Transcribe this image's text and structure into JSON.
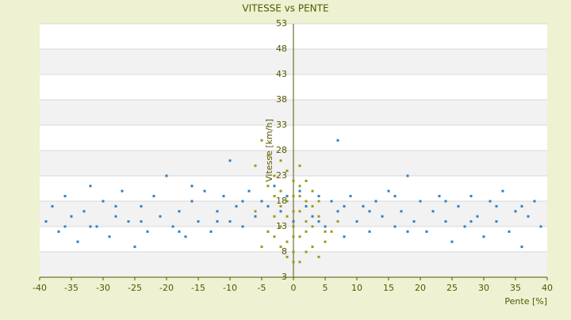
{
  "chart_data": {
    "type": "scatter",
    "title": "VITESSE vs PENTE",
    "xlabel": "Pente [%]",
    "ylabel": "Vitesse [km/h]",
    "xlim": [
      -40,
      40
    ],
    "xticks": [
      -40,
      -35,
      -30,
      -25,
      -20,
      -15,
      -10,
      -5,
      0,
      5,
      10,
      15,
      20,
      25,
      30,
      35,
      40
    ],
    "ylim": [
      3,
      53
    ],
    "yticks": [
      3,
      8,
      13,
      18,
      23,
      28,
      33,
      38,
      43,
      48,
      53
    ],
    "grid": true,
    "series": [
      {
        "color": "#2e7fc4",
        "x": [
          -39,
          -38,
          -37,
          -36,
          -35,
          -34,
          -33,
          -32,
          -31,
          -30,
          -29,
          -28,
          -27,
          -26,
          -25,
          -24,
          -23,
          -22,
          -21,
          -20,
          -19,
          -18,
          -17,
          -16,
          -15,
          -14,
          -13,
          -12,
          -11,
          -10,
          -9,
          -8,
          -7,
          -6,
          -5,
          -4,
          -3,
          -2,
          -1,
          0,
          1,
          2,
          3,
          4,
          5,
          6,
          7,
          8,
          9,
          10,
          11,
          12,
          13,
          14,
          15,
          16,
          17,
          18,
          19,
          20,
          21,
          22,
          23,
          24,
          25,
          26,
          27,
          28,
          29,
          30,
          31,
          32,
          33,
          34,
          35,
          36,
          37,
          38,
          39,
          -36,
          -28,
          -18,
          -8,
          8,
          18,
          28,
          36,
          -12,
          12,
          -4,
          4,
          -24,
          24,
          -32,
          32,
          7,
          -10,
          -16,
          16
        ],
        "values": [
          14,
          17,
          12,
          19,
          15,
          10,
          16,
          21,
          13,
          18,
          11,
          15,
          20,
          14,
          9,
          17,
          12,
          19,
          15,
          23,
          13,
          16,
          11,
          18,
          14,
          20,
          12,
          16,
          19,
          14,
          17,
          13,
          20,
          15,
          18,
          12,
          21,
          16,
          19,
          14,
          20,
          17,
          15,
          19,
          13,
          18,
          16,
          11,
          19,
          14,
          17,
          12,
          18,
          15,
          20,
          13,
          16,
          23,
          14,
          18,
          12,
          16,
          19,
          14,
          10,
          17,
          13,
          19,
          15,
          11,
          18,
          14,
          20,
          12,
          16,
          9,
          15,
          18,
          13,
          13,
          17,
          12,
          18,
          17,
          12,
          14,
          17,
          14,
          16,
          17,
          14,
          14,
          18,
          13,
          17,
          30,
          26,
          21,
          19
        ]
      },
      {
        "color": "#9c9a14",
        "x": [
          -5,
          -4,
          -3,
          -2,
          -1,
          0,
          1,
          2,
          3,
          4,
          5,
          -5,
          -4,
          -3,
          -2,
          -1,
          0,
          1,
          2,
          3,
          4,
          5,
          -1,
          0,
          1,
          2,
          -2,
          -3,
          3,
          0,
          0,
          -1,
          1,
          2,
          -2,
          6,
          7,
          -6,
          -6,
          0,
          1,
          -1,
          2,
          -3,
          3,
          0,
          -4,
          4,
          -2,
          1
        ],
        "values": [
          30,
          27,
          23,
          20,
          18,
          16,
          19,
          22,
          17,
          15,
          12,
          9,
          12,
          15,
          13,
          10,
          8,
          11,
          14,
          9,
          7,
          10,
          24,
          22,
          25,
          18,
          17,
          19,
          20,
          13,
          6,
          7,
          6,
          8,
          9,
          12,
          14,
          16,
          25,
          19,
          16,
          15,
          12,
          11,
          13,
          11,
          21,
          18,
          26,
          21
        ]
      }
    ]
  }
}
